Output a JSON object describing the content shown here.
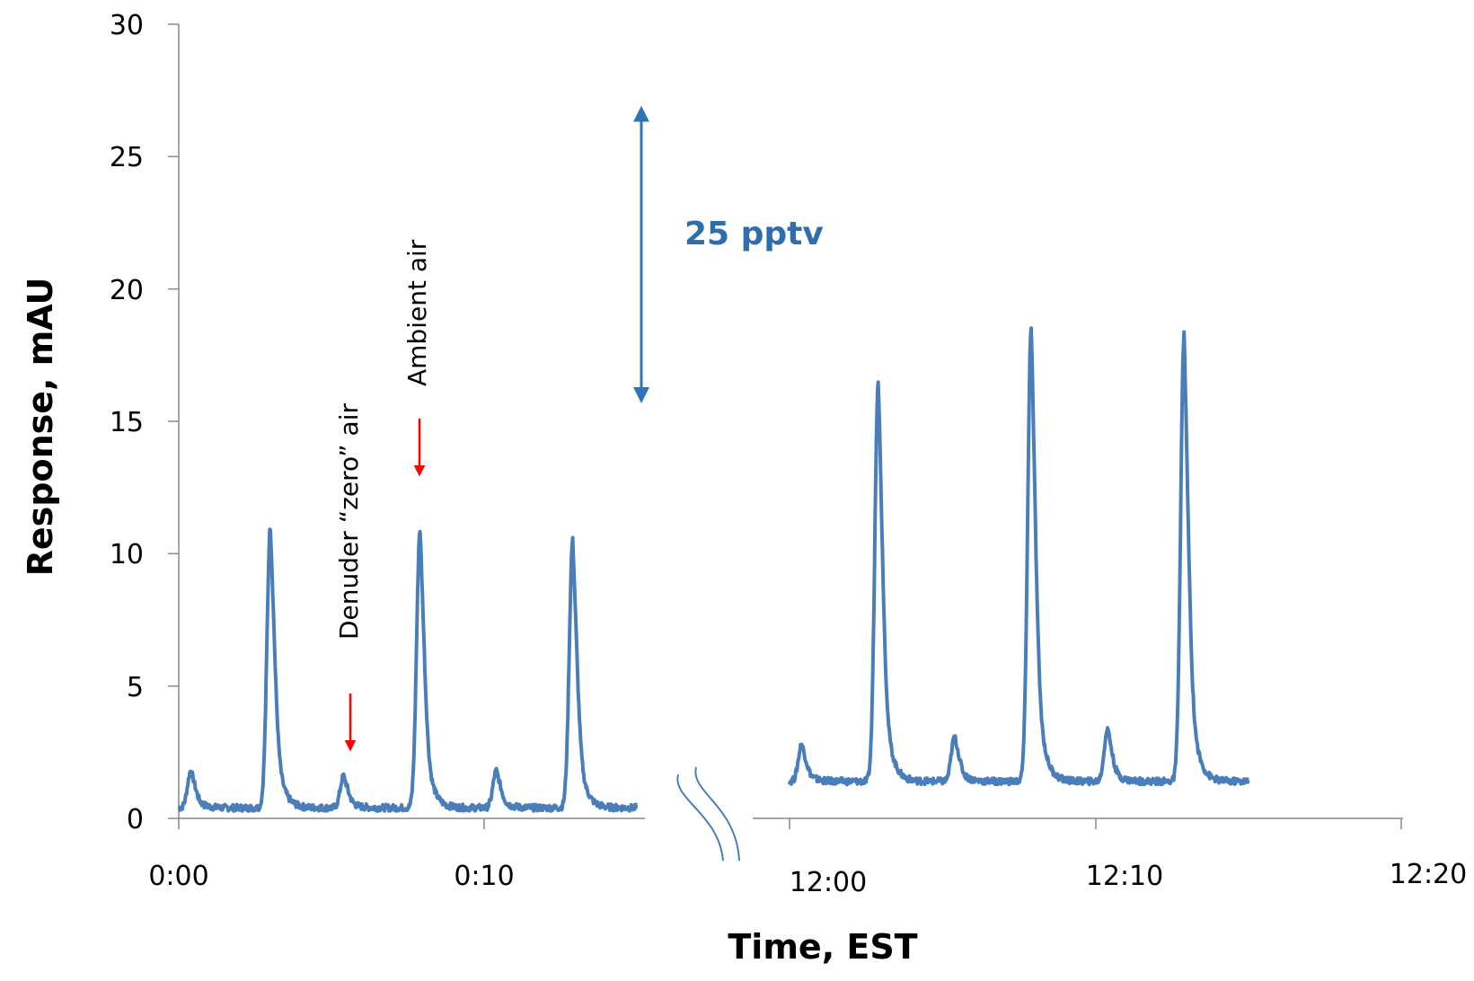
{
  "chart_data": {
    "type": "line",
    "title": "",
    "xlabel": "Time, EST",
    "ylabel": "Response, mAU",
    "ylim": [
      0,
      30
    ],
    "yticks": [
      "0",
      "5",
      "10",
      "15",
      "20",
      "25",
      "30"
    ],
    "xticks": [
      "0:00",
      "0:10",
      "12:00",
      "12:10",
      "12:20"
    ],
    "axis_break": "between 0:15 and 12:00",
    "grid": false,
    "legend": "none",
    "series_color": "#4A7EBB",
    "annotation_color": "#FF0000",
    "scale_bar_color": "#2E75B6",
    "scale_bar": {
      "label": "25 pptv",
      "from": 15.8,
      "to": 26.8
    },
    "annotations": [
      {
        "label": "Denuder “zero” air",
        "x_minutes": 5.6
      },
      {
        "label": "Ambient air",
        "x_minutes": 7.9
      }
    ],
    "series": [
      {
        "segment": "0:00 – 0:15",
        "baseline": 0.4,
        "peaks": [
          {
            "time": "0:00.4",
            "value": 1.8
          },
          {
            "time": "0:03.0",
            "value": 11.0
          },
          {
            "time": "0:05.4",
            "value": 1.6
          },
          {
            "time": "0:07.9",
            "value": 10.9
          },
          {
            "time": "0:10.4",
            "value": 1.8
          },
          {
            "time": "0:12.9",
            "value": 10.5
          }
        ]
      },
      {
        "segment": "12:00 – 12:15",
        "baseline": 1.4,
        "peaks": [
          {
            "time": "12:00.4",
            "value": 2.8
          },
          {
            "time": "12:02.9",
            "value": 16.6
          },
          {
            "time": "12:05.4",
            "value": 3.1
          },
          {
            "time": "12:07.9",
            "value": 18.6
          },
          {
            "time": "12:10.4",
            "value": 3.4
          },
          {
            "time": "12:12.9",
            "value": 18.3
          }
        ]
      }
    ]
  }
}
